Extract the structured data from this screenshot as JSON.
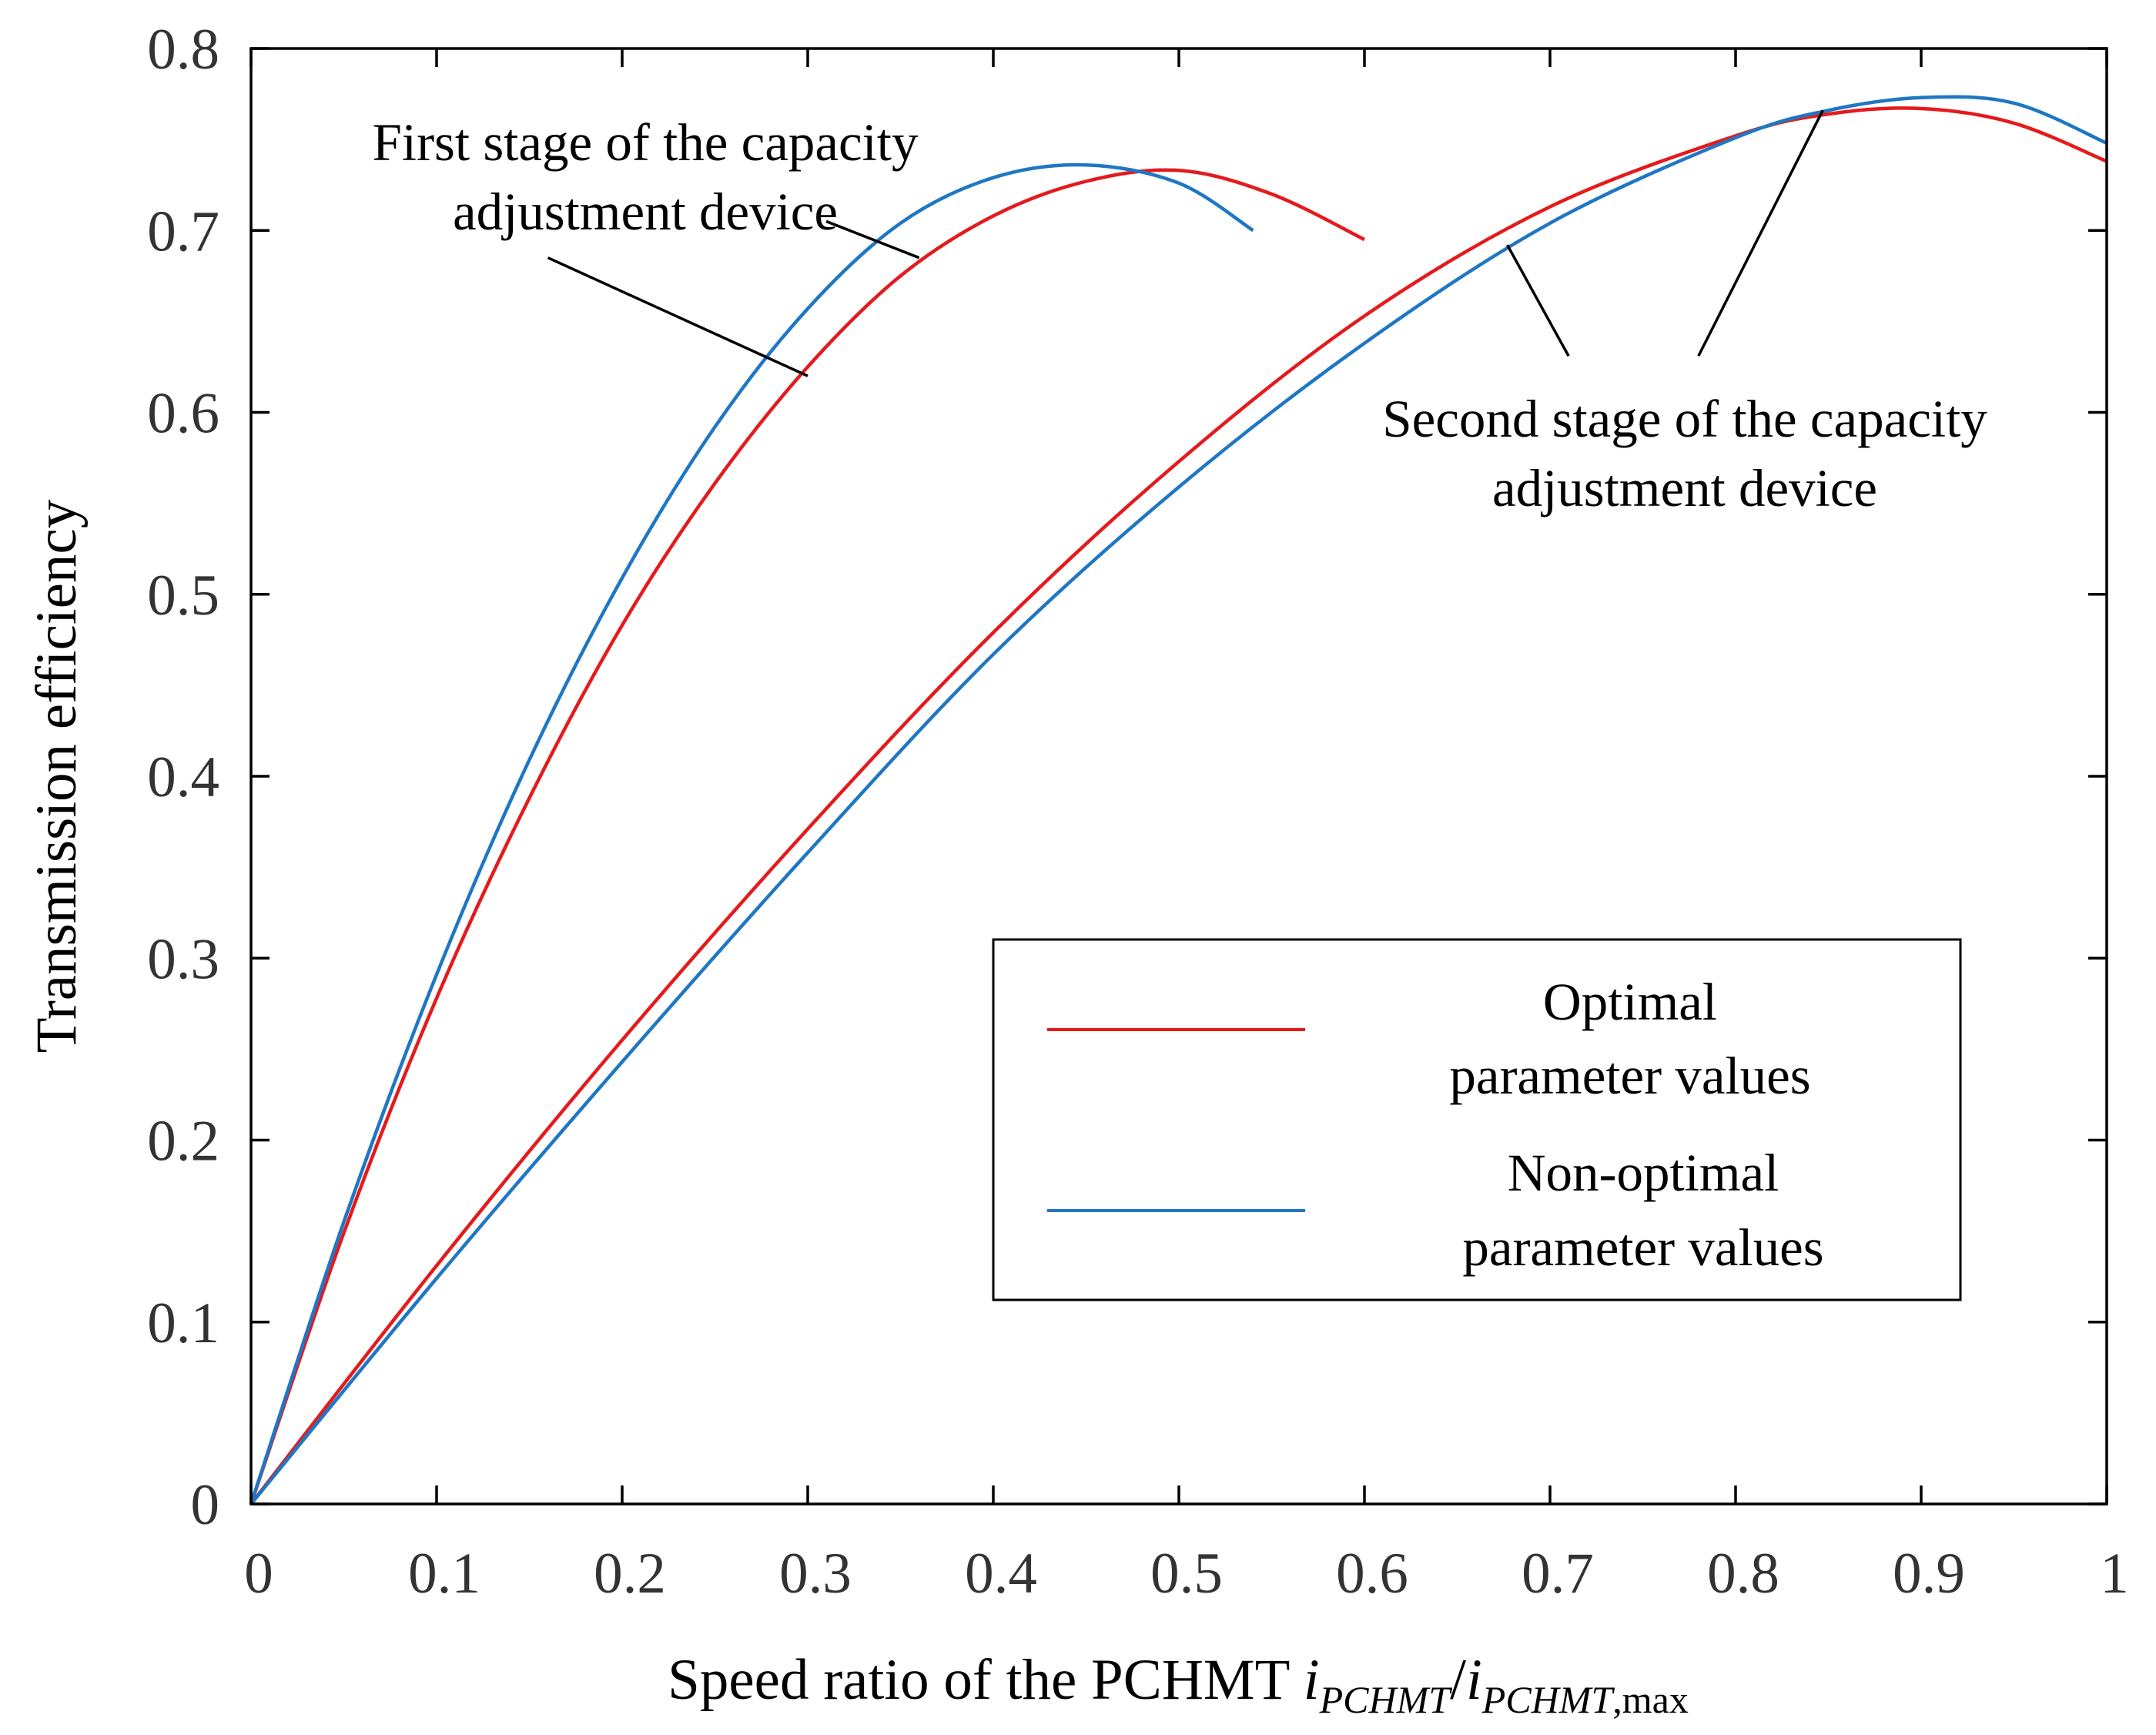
{
  "chart_data": {
    "type": "line",
    "xlabel": {
      "prefix": "Speed ratio of the PCHMT ",
      "var1": "i",
      "sub1": "PCHMT",
      "slash": "/",
      "var2": "i",
      "sub2_italic": "PCHMT",
      "sub2_plain": ",max"
    },
    "ylabel": "Transmission efficiency",
    "xlim": [
      0,
      1
    ],
    "ylim": [
      0,
      0.8
    ],
    "xticks": [
      "0",
      "0.1",
      "0.2",
      "0.3",
      "0.4",
      "0.5",
      "0.6",
      "0.7",
      "0.8",
      "0.9",
      "1"
    ],
    "yticks": [
      "0",
      "0.1",
      "0.2",
      "0.3",
      "0.4",
      "0.5",
      "0.6",
      "0.7",
      "0.8"
    ],
    "grid": false,
    "legend_position": "bottom-right",
    "colors": {
      "optimal": "#e41a1c",
      "non_optimal": "#1f77c4"
    },
    "series": [
      {
        "name": "Optimal parameter values",
        "stage": 1,
        "color": "#e41a1c",
        "x": [
          0,
          0.05,
          0.1,
          0.15,
          0.2,
          0.25,
          0.3,
          0.35,
          0.4,
          0.45,
          0.5,
          0.55,
          0.6
        ],
        "y": [
          0,
          0.149,
          0.278,
          0.388,
          0.483,
          0.561,
          0.625,
          0.675,
          0.708,
          0.727,
          0.733,
          0.72,
          0.695
        ]
      },
      {
        "name": "Non-optimal parameter values",
        "stage": 1,
        "color": "#1f77c4",
        "x": [
          0,
          0.05,
          0.1,
          0.15,
          0.2,
          0.25,
          0.3,
          0.35,
          0.4,
          0.45,
          0.5,
          0.54
        ],
        "y": [
          0,
          0.155,
          0.291,
          0.409,
          0.509,
          0.592,
          0.657,
          0.704,
          0.729,
          0.736,
          0.726,
          0.7
        ]
      },
      {
        "name": "Optimal parameter values",
        "stage": 2,
        "color": "#e41a1c",
        "x": [
          0,
          0.1,
          0.2,
          0.3,
          0.4,
          0.5,
          0.6,
          0.7,
          0.8,
          0.85,
          0.9,
          0.95,
          1
        ],
        "y": [
          0,
          0.131,
          0.255,
          0.371,
          0.479,
          0.573,
          0.653,
          0.713,
          0.752,
          0.764,
          0.767,
          0.759,
          0.738
        ]
      },
      {
        "name": "Non-optimal parameter values",
        "stage": 2,
        "color": "#1f77c4",
        "x": [
          0,
          0.1,
          0.2,
          0.3,
          0.4,
          0.5,
          0.6,
          0.7,
          0.8,
          0.85,
          0.9,
          0.95,
          1
        ],
        "y": [
          0,
          0.124,
          0.243,
          0.358,
          0.467,
          0.559,
          0.638,
          0.704,
          0.751,
          0.766,
          0.773,
          0.77,
          0.748
        ]
      }
    ],
    "annotations": [
      {
        "lines": [
          "First stage of the capacity",
          "adjustment device"
        ],
        "pointers": [
          {
            "from": [
              0.16,
              0.685
            ],
            "to": [
              0.3,
              0.62
            ]
          },
          {
            "from": [
              0.31,
              0.705
            ],
            "to": [
              0.36,
              0.685
            ]
          }
        ]
      },
      {
        "lines": [
          "Second stage of the capacity",
          "adjustment device"
        ],
        "pointers": [
          {
            "from": [
              0.71,
              0.631
            ],
            "to": [
              0.677,
              0.692
            ]
          },
          {
            "from": [
              0.78,
              0.631
            ],
            "to": [
              0.847,
              0.766
            ]
          }
        ]
      }
    ],
    "legend": [
      {
        "lines": [
          "Optimal",
          "parameter values"
        ],
        "color": "#e41a1c"
      },
      {
        "lines": [
          "Non-optimal",
          "parameter values"
        ],
        "color": "#1f77c4"
      }
    ]
  }
}
